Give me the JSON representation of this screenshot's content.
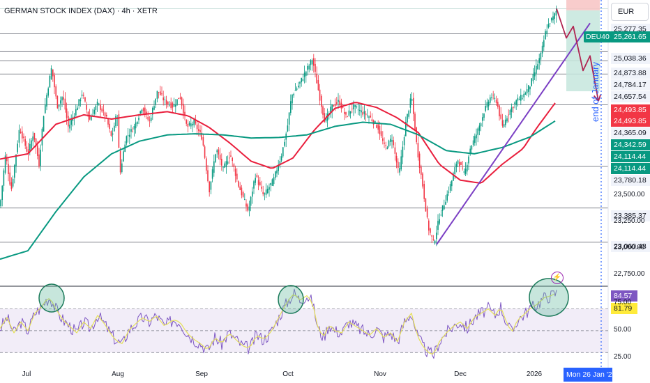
{
  "header": {
    "title": "GERMAN STOCK INDEX (DAX) · 4h · XETR",
    "currency": "EUR"
  },
  "symbol_label": "DEU40",
  "annotation": "end of January",
  "cursor_date": "Mon 26 Jan '2",
  "price_axis": {
    "ticks": [
      "23,500.00",
      "23,250.00",
      "23,000.00",
      "22,750.00"
    ],
    "tick_values": [
      23500,
      23250,
      23000,
      22750
    ]
  },
  "rsi_axis": {
    "ticks": [
      "75.00",
      "50.00",
      "25.00"
    ],
    "tick_values": [
      75,
      50,
      25
    ]
  },
  "price_labels": [
    {
      "text": "25,277.35",
      "value": 25277.35,
      "bg": "#f0f3fa",
      "fg": "#131722"
    },
    {
      "text": "25,261.65",
      "value": 25261.65,
      "bg": "#089981",
      "fg": "#ffffff"
    },
    {
      "text": "25,038.36",
      "value": 25038.36,
      "bg": "#f0f3fa",
      "fg": "#131722"
    },
    {
      "text": "24,873.88",
      "value": 24873.88,
      "bg": "#f0f3fa",
      "fg": "#131722"
    },
    {
      "text": "24,784.17",
      "value": 24784.17,
      "bg": "#f0f3fa",
      "fg": "#131722"
    },
    {
      "text": "24,657.54",
      "value": 24657.54,
      "bg": "#f0f3fa",
      "fg": "#131722"
    },
    {
      "text": "24,493.85",
      "value": 24493.85,
      "bg": "#f23645",
      "fg": "#ffffff"
    },
    {
      "text": "24,493.85",
      "value": 24493.85,
      "bg": "#f23645",
      "fg": "#ffffff"
    },
    {
      "text": "24,365.09",
      "value": 24365.09,
      "bg": "#f0f3fa",
      "fg": "#131722"
    },
    {
      "text": "24,342.59",
      "value": 24342.59,
      "bg": "#089981",
      "fg": "#ffffff"
    },
    {
      "text": "24,114.44",
      "value": 24114.44,
      "bg": "#089981",
      "fg": "#ffffff"
    },
    {
      "text": "24,114.44",
      "value": 24114.44,
      "bg": "#089981",
      "fg": "#ffffff"
    },
    {
      "text": "23,780.18",
      "value": 23780.18,
      "bg": "#f0f3fa",
      "fg": "#131722"
    },
    {
      "text": "23,385.37",
      "value": 23385.37,
      "bg": "#f0f3fa",
      "fg": "#131722"
    },
    {
      "text": "23,060.48",
      "value": 23060.48,
      "bg": "#f0f3fa",
      "fg": "#131722"
    }
  ],
  "rsi_labels": [
    {
      "text": "84.57",
      "value": 84.57,
      "bg": "#7e57c2",
      "fg": "#ffffff"
    },
    {
      "text": "81.79",
      "value": 81.79,
      "bg": "#ffeb3b",
      "fg": "#131722"
    }
  ],
  "colors": {
    "up": "#089981",
    "down": "#f23645",
    "ma_fast": "#e91e3c",
    "ma_slow": "#089981",
    "trendline": "#7b3fc4",
    "arrow": "#b02552",
    "rsi": "#7e57c2",
    "rsi_ma": "#e5e05a",
    "annotation": "#2962ff"
  },
  "chart_data": {
    "type": "candlestick",
    "x_labels": [
      "Jul",
      "Aug",
      "Sep",
      "Oct",
      "Nov",
      "Dec",
      "2026"
    ],
    "y_range": [
      22650,
      25360
    ],
    "horizontal_levels": [
      25277.35,
      25038.36,
      24873.88,
      24784.17,
      24657.54,
      24365.09,
      23780.18,
      23385.37,
      23060.48
    ],
    "price_path": [
      [
        0,
        23400
      ],
      [
        8,
        23900
      ],
      [
        16,
        23550
      ],
      [
        28,
        24150
      ],
      [
        40,
        23900
      ],
      [
        48,
        24100
      ],
      [
        56,
        23800
      ],
      [
        62,
        24250
      ],
      [
        68,
        24500
      ],
      [
        74,
        24720
      ],
      [
        82,
        24350
      ],
      [
        90,
        24450
      ],
      [
        98,
        24150
      ],
      [
        108,
        24300
      ],
      [
        118,
        24480
      ],
      [
        128,
        24220
      ],
      [
        140,
        24380
      ],
      [
        152,
        24250
      ],
      [
        160,
        24050
      ],
      [
        168,
        24300
      ],
      [
        172,
        23700
      ],
      [
        180,
        24050
      ],
      [
        192,
        24150
      ],
      [
        204,
        24350
      ],
      [
        214,
        24200
      ],
      [
        226,
        24500
      ],
      [
        236,
        24400
      ],
      [
        248,
        24350
      ],
      [
        258,
        24450
      ],
      [
        268,
        24150
      ],
      [
        278,
        24200
      ],
      [
        290,
        24050
      ],
      [
        300,
        23550
      ],
      [
        310,
        23950
      ],
      [
        320,
        23750
      ],
      [
        330,
        23900
      ],
      [
        342,
        23600
      ],
      [
        356,
        23350
      ],
      [
        366,
        23700
      ],
      [
        378,
        23500
      ],
      [
        392,
        23650
      ],
      [
        404,
        23900
      ],
      [
        412,
        24150
      ],
      [
        418,
        24450
      ],
      [
        428,
        24550
      ],
      [
        440,
        24700
      ],
      [
        448,
        24800
      ],
      [
        458,
        24450
      ],
      [
        466,
        24200
      ],
      [
        476,
        24350
      ],
      [
        486,
        24400
      ],
      [
        496,
        24250
      ],
      [
        506,
        24350
      ],
      [
        518,
        24300
      ],
      [
        530,
        24250
      ],
      [
        542,
        24150
      ],
      [
        552,
        23950
      ],
      [
        562,
        24050
      ],
      [
        572,
        23700
      ],
      [
        582,
        24200
      ],
      [
        590,
        24450
      ],
      [
        598,
        23950
      ],
      [
        606,
        23600
      ],
      [
        614,
        23200
      ],
      [
        622,
        23050
      ],
      [
        630,
        23300
      ],
      [
        638,
        23450
      ],
      [
        648,
        23650
      ],
      [
        656,
        23850
      ],
      [
        666,
        23700
      ],
      [
        674,
        23950
      ],
      [
        684,
        24100
      ],
      [
        694,
        24300
      ],
      [
        704,
        24450
      ],
      [
        712,
        24400
      ],
      [
        720,
        24150
      ],
      [
        730,
        24300
      ],
      [
        740,
        24400
      ],
      [
        750,
        24450
      ],
      [
        760,
        24550
      ],
      [
        768,
        24700
      ],
      [
        776,
        24850
      ],
      [
        782,
        25050
      ],
      [
        788,
        25150
      ],
      [
        794,
        25200
      ],
      [
        798,
        25261.65
      ]
    ],
    "moving_average_fast": [
      [
        0,
        23850
      ],
      [
        40,
        23900
      ],
      [
        80,
        24180
      ],
      [
        120,
        24270
      ],
      [
        160,
        24230
      ],
      [
        200,
        24270
      ],
      [
        240,
        24300
      ],
      [
        270,
        24260
      ],
      [
        300,
        24150
      ],
      [
        330,
        24000
      ],
      [
        360,
        23830
      ],
      [
        390,
        23760
      ],
      [
        420,
        23860
      ],
      [
        450,
        24120
      ],
      [
        480,
        24330
      ],
      [
        510,
        24390
      ],
      [
        540,
        24340
      ],
      [
        570,
        24240
      ],
      [
        600,
        24100
      ],
      [
        630,
        23800
      ],
      [
        660,
        23650
      ],
      [
        690,
        23620
      ],
      [
        720,
        23800
      ],
      [
        750,
        23950
      ],
      [
        770,
        24150
      ],
      [
        798,
        24400
      ]
    ],
    "moving_average_slow": [
      [
        0,
        22900
      ],
      [
        40,
        22980
      ],
      [
        80,
        23350
      ],
      [
        120,
        23680
      ],
      [
        160,
        23900
      ],
      [
        200,
        24020
      ],
      [
        240,
        24080
      ],
      [
        280,
        24090
      ],
      [
        320,
        24080
      ],
      [
        360,
        24050
      ],
      [
        400,
        24055
      ],
      [
        440,
        24080
      ],
      [
        480,
        24160
      ],
      [
        520,
        24200
      ],
      [
        560,
        24180
      ],
      [
        600,
        24080
      ],
      [
        640,
        23930
      ],
      [
        680,
        23900
      ],
      [
        720,
        23960
      ],
      [
        760,
        24060
      ],
      [
        798,
        24220
      ]
    ],
    "trendline": [
      [
        626,
        23040
      ],
      [
        846,
        25140
      ]
    ],
    "projection_arrow": [
      [
        798,
        25278
      ],
      [
        812,
        25000
      ],
      [
        822,
        25110
      ],
      [
        836,
        24690
      ],
      [
        846,
        24830
      ],
      [
        858,
        24400
      ]
    ],
    "rsi": {
      "range": [
        20,
        90
      ],
      "overbought": 70,
      "oversold": 30,
      "last_value": 84.57,
      "ma_last_value": 81.79,
      "series": [
        [
          0,
          52
        ],
        [
          10,
          62
        ],
        [
          20,
          48
        ],
        [
          30,
          58
        ],
        [
          40,
          50
        ],
        [
          50,
          66
        ],
        [
          60,
          72
        ],
        [
          66,
          78
        ],
        [
          72,
          80
        ],
        [
          80,
          70
        ],
        [
          90,
          60
        ],
        [
          100,
          54
        ],
        [
          110,
          48
        ],
        [
          120,
          58
        ],
        [
          130,
          52
        ],
        [
          140,
          64
        ],
        [
          150,
          56
        ],
        [
          160,
          46
        ],
        [
          168,
          40
        ],
        [
          176,
          38
        ],
        [
          184,
          50
        ],
        [
          194,
          56
        ],
        [
          204,
          62
        ],
        [
          214,
          58
        ],
        [
          224,
          64
        ],
        [
          236,
          54
        ],
        [
          248,
          60
        ],
        [
          258,
          58
        ],
        [
          268,
          48
        ],
        [
          278,
          42
        ],
        [
          288,
          38
        ],
        [
          298,
          32
        ],
        [
          308,
          44
        ],
        [
          318,
          38
        ],
        [
          328,
          48
        ],
        [
          338,
          42
        ],
        [
          348,
          36
        ],
        [
          358,
          34
        ],
        [
          368,
          46
        ],
        [
          378,
          42
        ],
        [
          388,
          48
        ],
        [
          398,
          60
        ],
        [
          408,
          72
        ],
        [
          416,
          80
        ],
        [
          422,
          84
        ],
        [
          430,
          78
        ],
        [
          440,
          82
        ],
        [
          448,
          76
        ],
        [
          456,
          52
        ],
        [
          464,
          44
        ],
        [
          472,
          56
        ],
        [
          480,
          50
        ],
        [
          490,
          48
        ],
        [
          500,
          58
        ],
        [
          510,
          54
        ],
        [
          520,
          50
        ],
        [
          530,
          46
        ],
        [
          540,
          52
        ],
        [
          550,
          44
        ],
        [
          560,
          48
        ],
        [
          570,
          40
        ],
        [
          580,
          58
        ],
        [
          590,
          66
        ],
        [
          598,
          46
        ],
        [
          606,
          36
        ],
        [
          614,
          30
        ],
        [
          622,
          28
        ],
        [
          630,
          40
        ],
        [
          640,
          48
        ],
        [
          650,
          54
        ],
        [
          660,
          58
        ],
        [
          670,
          52
        ],
        [
          680,
          62
        ],
        [
          690,
          66
        ],
        [
          700,
          70
        ],
        [
          710,
          64
        ],
        [
          718,
          72
        ],
        [
          726,
          58
        ],
        [
          734,
          48
        ],
        [
          742,
          60
        ],
        [
          750,
          64
        ],
        [
          760,
          70
        ],
        [
          770,
          74
        ],
        [
          780,
          80
        ],
        [
          790,
          82
        ],
        [
          798,
          84.57
        ]
      ]
    }
  }
}
